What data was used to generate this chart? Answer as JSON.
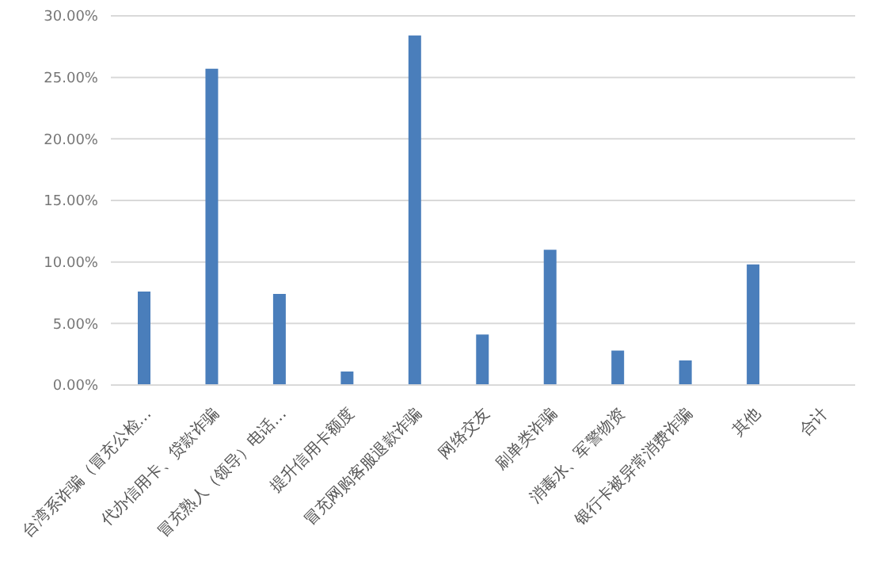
{
  "chart_data": {
    "type": "bar",
    "categories": [
      "台湾系诈骗（冒充公检…",
      "代办信用卡、贷款诈骗",
      "冒充熟人（领导）电话…",
      "提升信用卡额度",
      "冒充网购客服退款诈骗",
      "网络交友",
      "刷单类诈骗",
      "消毒水、军警物资",
      "银行卡被异常消费诈骗",
      "其他",
      "合计"
    ],
    "values": [
      7.6,
      25.7,
      7.4,
      1.1,
      28.4,
      4.1,
      11.0,
      2.8,
      2.0,
      9.8,
      null
    ],
    "color": "#4a7ebb",
    "ylim": [
      0,
      30
    ],
    "yticks": [
      {
        "value": 0,
        "label": "0.00%"
      },
      {
        "value": 5,
        "label": "5.00%"
      },
      {
        "value": 10,
        "label": "10.00%"
      },
      {
        "value": 15,
        "label": "15.00%"
      },
      {
        "value": 20,
        "label": "20.00%"
      },
      {
        "value": 25,
        "label": "25.00%"
      },
      {
        "value": 30,
        "label": "30.00%"
      }
    ],
    "grid": "y"
  }
}
